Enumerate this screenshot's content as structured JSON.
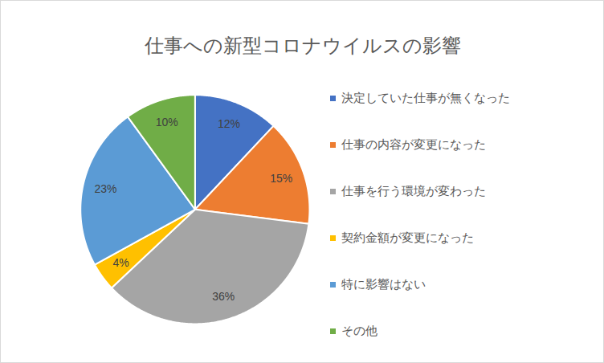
{
  "chart_data": {
    "type": "pie",
    "title": "仕事への新型コロナウイルスの影響",
    "categories": [
      "決定していた仕事が無くなった",
      "仕事の内容が変更になった",
      "仕事を行う環境が変わった",
      "契約金額が変更になった",
      "特に影響はない",
      "その他"
    ],
    "values": [
      12,
      15,
      36,
      4,
      23,
      10
    ],
    "value_labels": [
      "12%",
      "15%",
      "36%",
      "4%",
      "23%",
      "10%"
    ],
    "colors": [
      "#4472c4",
      "#ed7d31",
      "#a5a5a5",
      "#ffc000",
      "#5b9bd5",
      "#70ad47"
    ],
    "data_labels": true,
    "legend": "right"
  }
}
